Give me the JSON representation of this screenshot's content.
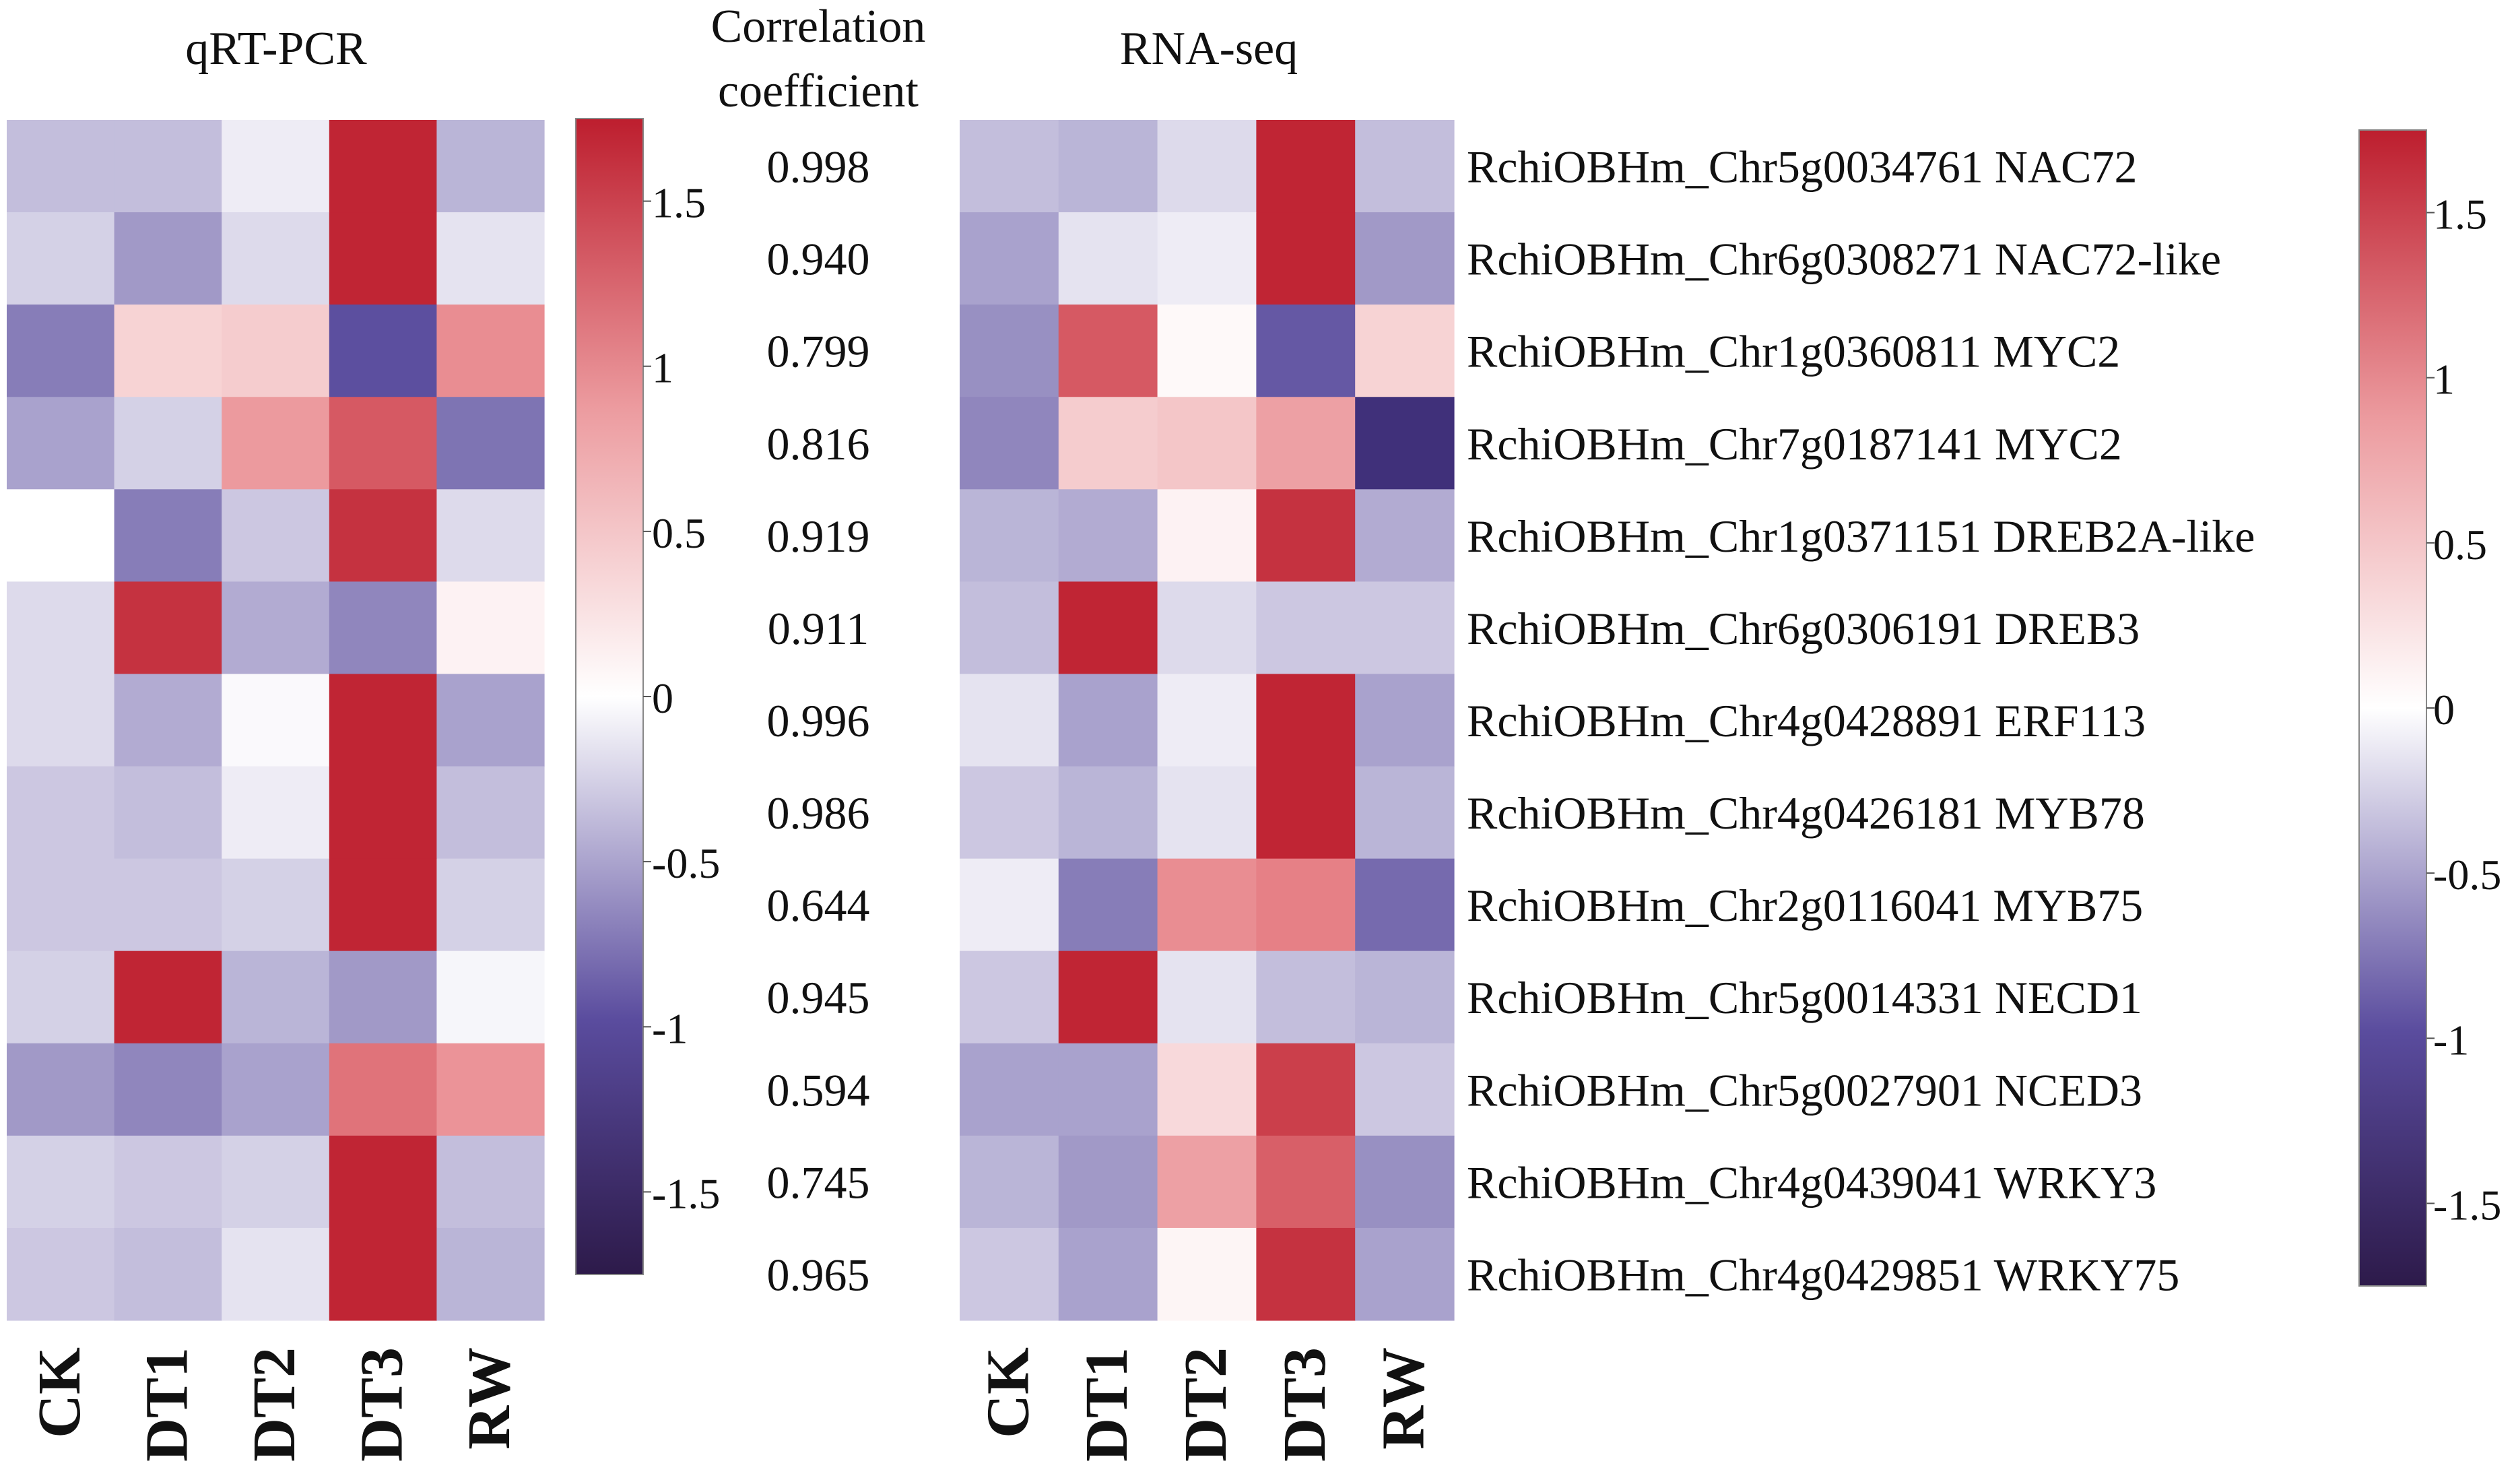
{
  "chart_data": {
    "type": "heatmap",
    "scale": {
      "min": -1.75,
      "max": 1.75,
      "ticks": [
        1.5,
        1,
        0.5,
        0,
        -0.5,
        -1,
        -1.5
      ]
    },
    "colors": {
      "low": "#2d1a4a",
      "mid_low": "#4b3c95",
      "mid": "#ffffff",
      "mid_high": "#e8858a",
      "high": "#bd1e2e"
    },
    "columns": [
      "CK",
      "DT1",
      "DT2",
      "DT3",
      "RW"
    ],
    "qrt_pcr": {
      "title": "qRT-PCR",
      "values": [
        [
          -0.35,
          -0.35,
          -0.1,
          1.7,
          -0.4
        ],
        [
          -0.25,
          -0.55,
          -0.2,
          1.7,
          -0.15
        ],
        [
          -0.7,
          0.35,
          0.4,
          -0.95,
          0.9
        ],
        [
          -0.5,
          -0.25,
          0.8,
          1.3,
          -0.75
        ],
        [
          0.0,
          -0.7,
          -0.3,
          1.6,
          -0.2
        ],
        [
          -0.2,
          1.6,
          -0.45,
          -0.65,
          0.1
        ],
        [
          -0.2,
          -0.45,
          -0.03,
          1.7,
          -0.5
        ],
        [
          -0.3,
          -0.35,
          -0.1,
          1.7,
          -0.35
        ],
        [
          -0.3,
          -0.3,
          -0.25,
          1.7,
          -0.25
        ],
        [
          -0.25,
          1.7,
          -0.4,
          -0.55,
          -0.05
        ],
        [
          -0.55,
          -0.65,
          -0.5,
          1.1,
          0.85
        ],
        [
          -0.25,
          -0.3,
          -0.25,
          1.7,
          -0.35
        ],
        [
          -0.3,
          -0.35,
          -0.15,
          1.7,
          -0.4
        ]
      ]
    },
    "correlation": {
      "title_line1": "Correlation",
      "title_line2": "coefficient",
      "values": [
        "0.998",
        "0.940",
        "0.799",
        "0.816",
        "0.919",
        "0.911",
        "0.996",
        "0.986",
        "0.644",
        "0.945",
        "0.594",
        "0.745",
        "0.965"
      ]
    },
    "rna_seq": {
      "title": "RNA-seq",
      "values": [
        [
          -0.35,
          -0.4,
          -0.2,
          1.7,
          -0.35
        ],
        [
          -0.5,
          -0.15,
          -0.1,
          1.7,
          -0.55
        ],
        [
          -0.6,
          1.3,
          0.05,
          -0.9,
          0.35
        ],
        [
          -0.65,
          0.4,
          0.45,
          0.75,
          -1.3
        ],
        [
          -0.4,
          -0.45,
          0.1,
          1.6,
          -0.45
        ],
        [
          -0.35,
          1.7,
          -0.2,
          -0.3,
          -0.3
        ],
        [
          -0.15,
          -0.5,
          -0.1,
          1.7,
          -0.5
        ],
        [
          -0.3,
          -0.4,
          -0.15,
          1.7,
          -0.4
        ],
        [
          -0.1,
          -0.7,
          0.9,
          1.0,
          -0.8
        ],
        [
          -0.3,
          1.7,
          -0.15,
          -0.35,
          -0.4
        ],
        [
          -0.5,
          -0.5,
          0.3,
          1.5,
          -0.3
        ],
        [
          -0.4,
          -0.55,
          0.75,
          1.25,
          -0.6
        ],
        [
          -0.3,
          -0.5,
          0.08,
          1.6,
          -0.5
        ]
      ]
    },
    "genes": [
      "RchiOBHm_Chr5g0034761 NAC72",
      "RchiOBHm_Chr6g0308271 NAC72-like",
      "RchiOBHm_Chr1g0360811 MYC2",
      "RchiOBHm_Chr7g0187141 MYC2",
      "RchiOBHm_Chr1g0371151 DREB2A-like",
      "RchiOBHm_Chr6g0306191 DREB3",
      "RchiOBHm_Chr4g0428891 ERF113",
      "RchiOBHm_Chr4g0426181 MYB78",
      "RchiOBHm_Chr2g0116041 MYB75",
      "RchiOBHm_Chr5g0014331 NECD1",
      "RchiOBHm_Chr5g0027901 NCED3",
      "RchiOBHm_Chr4g0439041 WRKY3",
      "RchiOBHm_Chr4g0429851 WRKY75"
    ]
  }
}
